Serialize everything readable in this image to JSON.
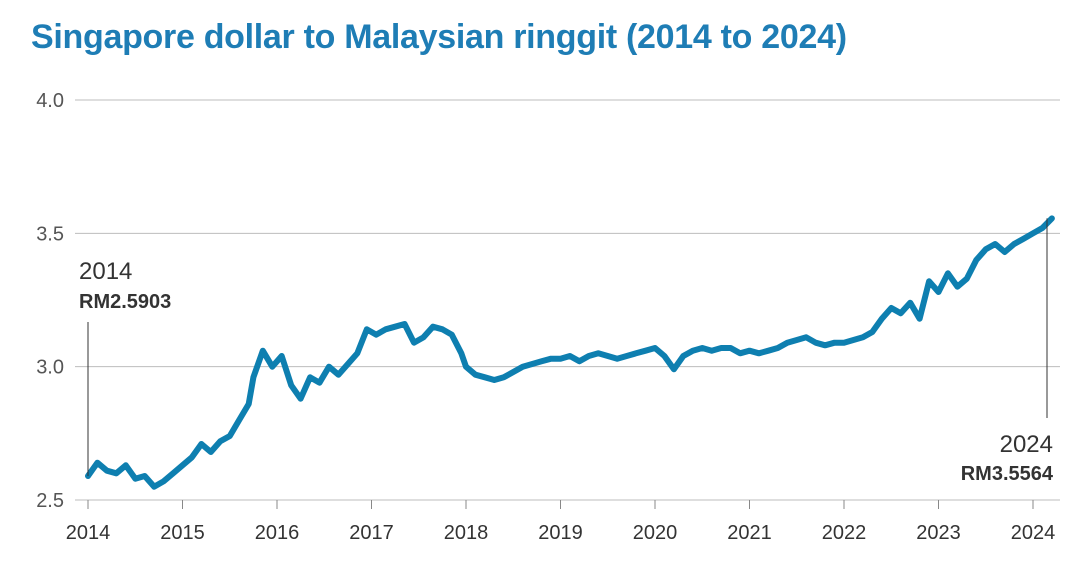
{
  "chart_data": {
    "type": "line",
    "title": "Singapore dollar to Malaysian ringgit (2014 to 2024)",
    "xlabel": "",
    "ylabel": "",
    "x_ticks": [
      "2014",
      "2015",
      "2016",
      "2017",
      "2018",
      "2019",
      "2020",
      "2021",
      "2022",
      "2023",
      "2024"
    ],
    "y_ticks": [
      "2.5",
      "3.0",
      "3.5",
      "4.0"
    ],
    "xlim": [
      2014.0,
      2024.25
    ],
    "ylim": [
      2.5,
      4.0
    ],
    "grid": true,
    "series": [
      {
        "x": [
          2014.0,
          2014.1,
          2014.2,
          2014.3,
          2014.4,
          2014.5,
          2014.6,
          2014.7,
          2014.8,
          2014.9,
          2015.0,
          2015.1,
          2015.2,
          2015.3,
          2015.4,
          2015.5,
          2015.6,
          2015.7,
          2015.75,
          2015.85,
          2015.95,
          2016.05,
          2016.15,
          2016.25,
          2016.35,
          2016.45,
          2016.55,
          2016.65,
          2016.75,
          2016.85,
          2016.95,
          2017.05,
          2017.15,
          2017.25,
          2017.35,
          2017.45,
          2017.55,
          2017.65,
          2017.75,
          2017.85,
          2017.95,
          2018.0,
          2018.1,
          2018.2,
          2018.3,
          2018.4,
          2018.5,
          2018.6,
          2018.7,
          2018.8,
          2018.9,
          2019.0,
          2019.1,
          2019.2,
          2019.3,
          2019.4,
          2019.5,
          2019.6,
          2019.7,
          2019.8,
          2019.9,
          2020.0,
          2020.1,
          2020.2,
          2020.3,
          2020.4,
          2020.5,
          2020.6,
          2020.7,
          2020.8,
          2020.9,
          2021.0,
          2021.1,
          2021.2,
          2021.3,
          2021.4,
          2021.5,
          2021.6,
          2021.7,
          2021.8,
          2021.9,
          2022.0,
          2022.1,
          2022.2,
          2022.3,
          2022.4,
          2022.5,
          2022.6,
          2022.7,
          2022.8,
          2022.9,
          2023.0,
          2023.1,
          2023.2,
          2023.3,
          2023.4,
          2023.5,
          2023.6,
          2023.7,
          2023.8,
          2023.9,
          2024.0,
          2024.1,
          2024.2
        ],
        "values": [
          2.59,
          2.64,
          2.61,
          2.6,
          2.63,
          2.58,
          2.59,
          2.55,
          2.57,
          2.6,
          2.63,
          2.66,
          2.71,
          2.68,
          2.72,
          2.74,
          2.8,
          2.86,
          2.96,
          3.06,
          3.0,
          3.04,
          2.93,
          2.88,
          2.96,
          2.94,
          3.0,
          2.97,
          3.01,
          3.05,
          3.14,
          3.12,
          3.14,
          3.15,
          3.16,
          3.09,
          3.11,
          3.15,
          3.14,
          3.12,
          3.05,
          3.0,
          2.97,
          2.96,
          2.95,
          2.96,
          2.98,
          3.0,
          3.01,
          3.02,
          3.03,
          3.03,
          3.04,
          3.02,
          3.04,
          3.05,
          3.04,
          3.03,
          3.04,
          3.05,
          3.06,
          3.07,
          3.04,
          2.99,
          3.04,
          3.06,
          3.07,
          3.06,
          3.07,
          3.07,
          3.05,
          3.06,
          3.05,
          3.06,
          3.07,
          3.09,
          3.1,
          3.11,
          3.09,
          3.08,
          3.09,
          3.09,
          3.1,
          3.11,
          3.13,
          3.18,
          3.22,
          3.2,
          3.24,
          3.18,
          3.32,
          3.28,
          3.35,
          3.3,
          3.33,
          3.4,
          3.44,
          3.46,
          3.43,
          3.46,
          3.48,
          3.5,
          3.52,
          3.556
        ]
      }
    ],
    "annotations": [
      {
        "year": "2014",
        "value": "RM2.5903"
      },
      {
        "year": "2024",
        "value": "RM3.5564"
      }
    ]
  },
  "colors": {
    "title": "#1E7DB5",
    "line": "#0E7FB0",
    "grid": "#BDBDBD",
    "tick_label": "#555555",
    "annotation": "#333333"
  }
}
